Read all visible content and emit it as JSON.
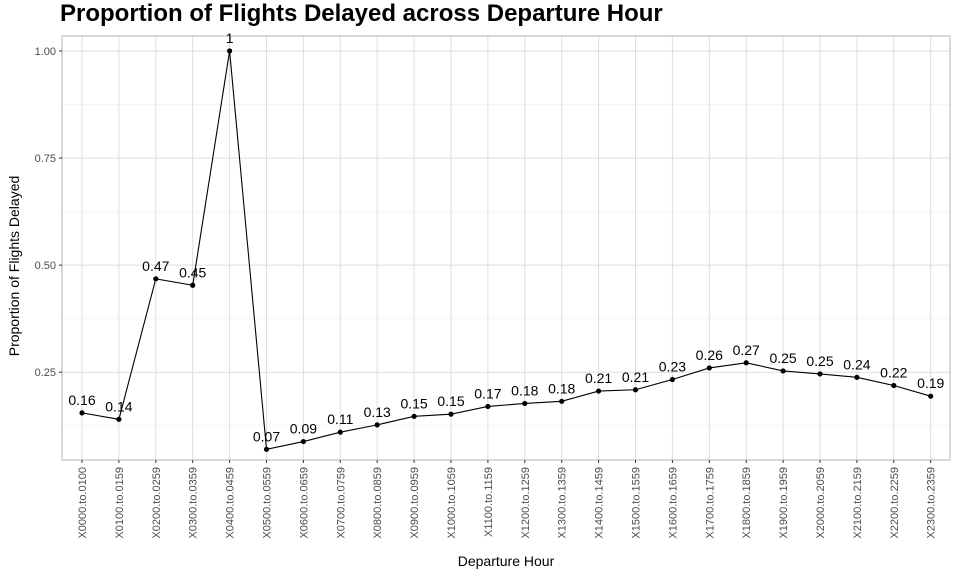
{
  "chart_data": {
    "type": "line",
    "title": "Proportion of Flights Delayed across Departure Hour",
    "xlabel": "Departure Hour",
    "ylabel": "Proportion of Flights Delayed",
    "categories": [
      "X0000.to.0100",
      "X0100.to.0159",
      "X0200.to.0259",
      "X0300.to.0359",
      "X0400.to.0459",
      "X0500.to.0559",
      "X0600.to.0659",
      "X0700.to.0759",
      "X0800.to.0859",
      "X0900.to.0959",
      "X1000.to.1059",
      "X1100.to.1159",
      "X1200.to.1259",
      "X1300.to.1359",
      "X1400.to.1459",
      "X1500.to.1559",
      "X1600.to.1659",
      "X1700.to.1759",
      "X1800.to.1859",
      "X1900.to.1959",
      "X2000.to.2059",
      "X2100.to.2159",
      "X2200.to.2259",
      "X2300.to.2359"
    ],
    "values": [
      0.155,
      0.14,
      0.468,
      0.453,
      1.0,
      0.07,
      0.088,
      0.11,
      0.127,
      0.147,
      0.152,
      0.17,
      0.177,
      0.182,
      0.206,
      0.209,
      0.233,
      0.26,
      0.272,
      0.253,
      0.246,
      0.238,
      0.219,
      0.194
    ],
    "labels": [
      "0.16",
      "0.14",
      "0.47",
      "0.45",
      "1",
      "0.07",
      "0.09",
      "0.11",
      "0.13",
      "0.15",
      "0.15",
      "0.17",
      "0.18",
      "0.18",
      "0.21",
      "0.21",
      "0.23",
      "0.26",
      "0.27",
      "0.25",
      "0.25",
      "0.24",
      "0.22",
      "0.19"
    ],
    "y_ticks": [
      0.25,
      0.5,
      0.75,
      1.0
    ],
    "y_tick_labels": [
      "0.25",
      "0.50",
      "0.75",
      "1.00"
    ],
    "ylim": [
      0.045,
      1.035
    ],
    "grid": true,
    "legend": "none",
    "colors": {
      "line": "#000000",
      "grid_major": "#dedede",
      "grid_minor": "#efefef",
      "border": "#b3b3b3"
    }
  }
}
